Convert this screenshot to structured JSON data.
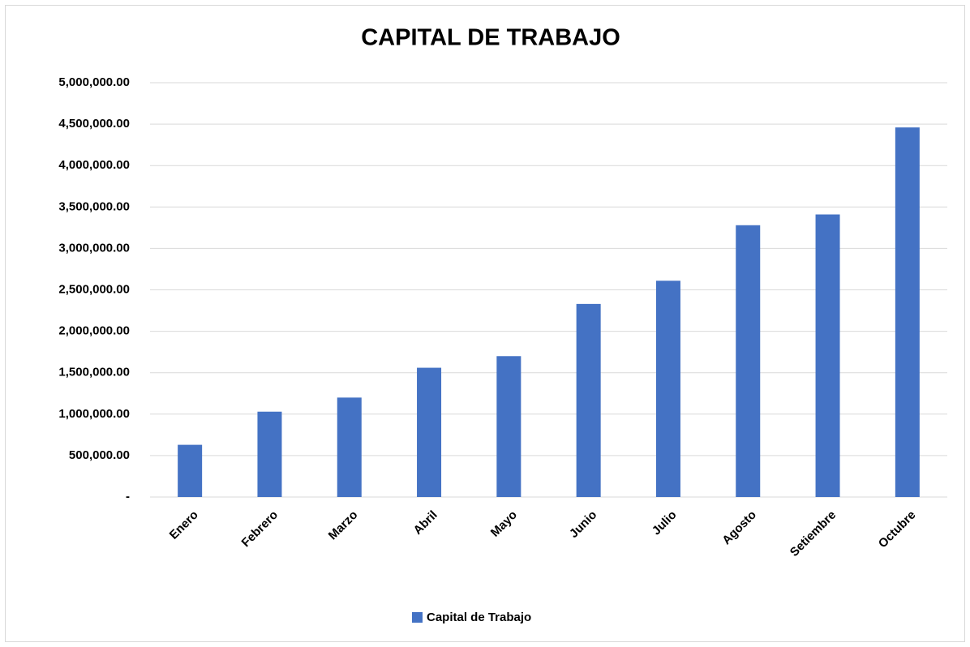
{
  "chart_data": {
    "type": "bar",
    "title": "CAPITAL DE TRABAJO",
    "categories": [
      "Enero",
      "Febrero",
      "Marzo",
      "Abril",
      "Mayo",
      "Junio",
      "Julio",
      "Agosto",
      "Setiembre",
      "Octubre"
    ],
    "series": [
      {
        "name": "Capital de Trabajo",
        "color": "#4472c4",
        "values": [
          630000,
          1030000,
          1200000,
          1560000,
          1700000,
          2330000,
          2610000,
          3280000,
          3410000,
          4460000
        ]
      }
    ],
    "ylim": [
      0,
      5000000
    ],
    "yticks": [
      {
        "value": 0,
        "label": "-"
      },
      {
        "value": 500000,
        "label": "500,000.00"
      },
      {
        "value": 1000000,
        "label": "1,000,000.00"
      },
      {
        "value": 1500000,
        "label": "1,500,000.00"
      },
      {
        "value": 2000000,
        "label": "2,000,000.00"
      },
      {
        "value": 2500000,
        "label": "2,500,000.00"
      },
      {
        "value": 3000000,
        "label": "3,000,000.00"
      },
      {
        "value": 3500000,
        "label": "3,500,000.00"
      },
      {
        "value": 4000000,
        "label": "4,000,000.00"
      },
      {
        "value": 4500000,
        "label": "4,500,000.00"
      },
      {
        "value": 5000000,
        "label": "5,000,000.00"
      }
    ],
    "grid": true,
    "legend": "bottom"
  }
}
